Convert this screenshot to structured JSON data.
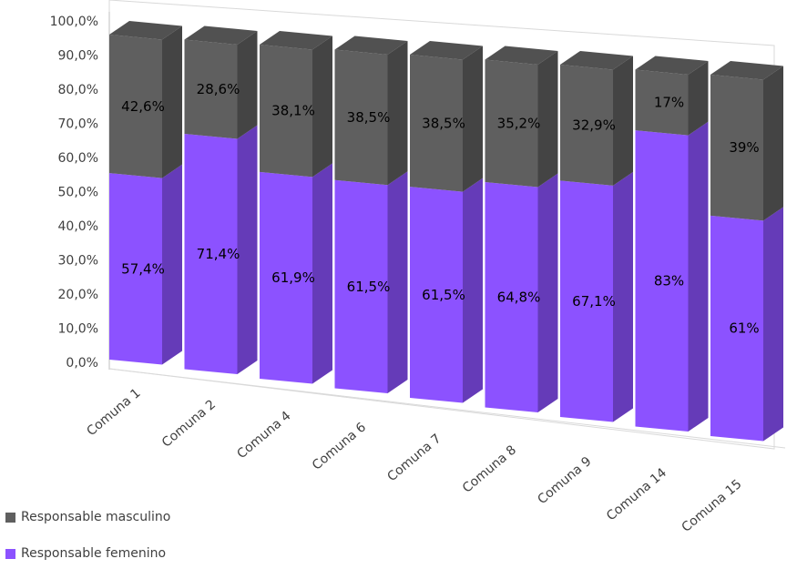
{
  "chart_data": {
    "type": "bar",
    "stacked": true,
    "three_d": true,
    "title": "",
    "xlabel": "",
    "ylabel": "",
    "ylim": [
      0,
      100
    ],
    "y_ticks": [
      "0,0%",
      "10,0%",
      "20,0%",
      "30,0%",
      "40,0%",
      "50,0%",
      "60,0%",
      "70,0%",
      "80,0%",
      "90,0%",
      "100,0%"
    ],
    "categories": [
      "Comuna 1",
      "Comuna 2",
      "Comuna 4",
      "Comuna 6",
      "Comuna 7",
      "Comuna 8",
      "Comuna 9",
      "Comuna 14",
      "Comuna 15"
    ],
    "series": [
      {
        "name": "Responsable femenino",
        "color": "#8c52ff",
        "values": [
          57.4,
          71.4,
          61.9,
          61.5,
          61.5,
          64.8,
          67.1,
          83,
          61
        ],
        "labels": [
          "57,4%",
          "71,4%",
          "61,9%",
          "61,5%",
          "61,5%",
          "64,8%",
          "67,1%",
          "83%",
          "61%"
        ]
      },
      {
        "name": "Responsable masculino",
        "color": "#5f5f5f",
        "values": [
          42.6,
          28.6,
          38.1,
          38.5,
          38.5,
          35.2,
          32.9,
          17,
          39
        ],
        "labels": [
          "42,6%",
          "28,6%",
          "38,1%",
          "38,5%",
          "38,5%",
          "35,2%",
          "32,9%",
          "17%",
          "39%"
        ]
      }
    ],
    "legend_position": "bottom-left",
    "grid": false
  }
}
